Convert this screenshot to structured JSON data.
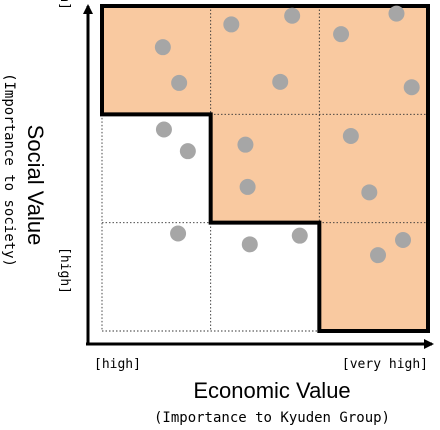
{
  "axes": {
    "x": {
      "title": "Economic Value",
      "subtitle": "(Importance to Kyuden Group)",
      "low_label": "[high]",
      "high_label": "[very high]"
    },
    "y": {
      "title": "Social Value",
      "subtitle": "(Importance to society)",
      "low_label": "[high]",
      "high_label": "[very high]"
    }
  },
  "grid": {
    "columns": 3,
    "rows": 3
  },
  "highlight_color": "#f9c9a0",
  "dot_color": "#a6a6a6",
  "chart_data": {
    "type": "scatter",
    "xlabel": "Economic Value",
    "ylabel": "Social Value",
    "xlim": [
      0,
      3
    ],
    "ylim": [
      0,
      3
    ],
    "highlighted_region": "cells where row 3 (very high social value) or column 3 (very high economic value) or the center cell",
    "points": [
      {
        "x": 0.56,
        "y": 2.62
      },
      {
        "x": 0.71,
        "y": 2.29
      },
      {
        "x": 1.19,
        "y": 2.83
      },
      {
        "x": 1.75,
        "y": 2.91
      },
      {
        "x": 1.64,
        "y": 2.3
      },
      {
        "x": 2.2,
        "y": 2.74
      },
      {
        "x": 2.71,
        "y": 2.93
      },
      {
        "x": 2.85,
        "y": 2.25
      },
      {
        "x": 0.57,
        "y": 1.86
      },
      {
        "x": 0.79,
        "y": 1.66
      },
      {
        "x": 1.32,
        "y": 1.72
      },
      {
        "x": 1.34,
        "y": 1.33
      },
      {
        "x": 2.29,
        "y": 1.8
      },
      {
        "x": 2.46,
        "y": 1.28
      },
      {
        "x": 0.7,
        "y": 0.9
      },
      {
        "x": 1.36,
        "y": 0.8
      },
      {
        "x": 1.82,
        "y": 0.88
      },
      {
        "x": 2.77,
        "y": 0.84
      },
      {
        "x": 2.54,
        "y": 0.7
      }
    ]
  }
}
